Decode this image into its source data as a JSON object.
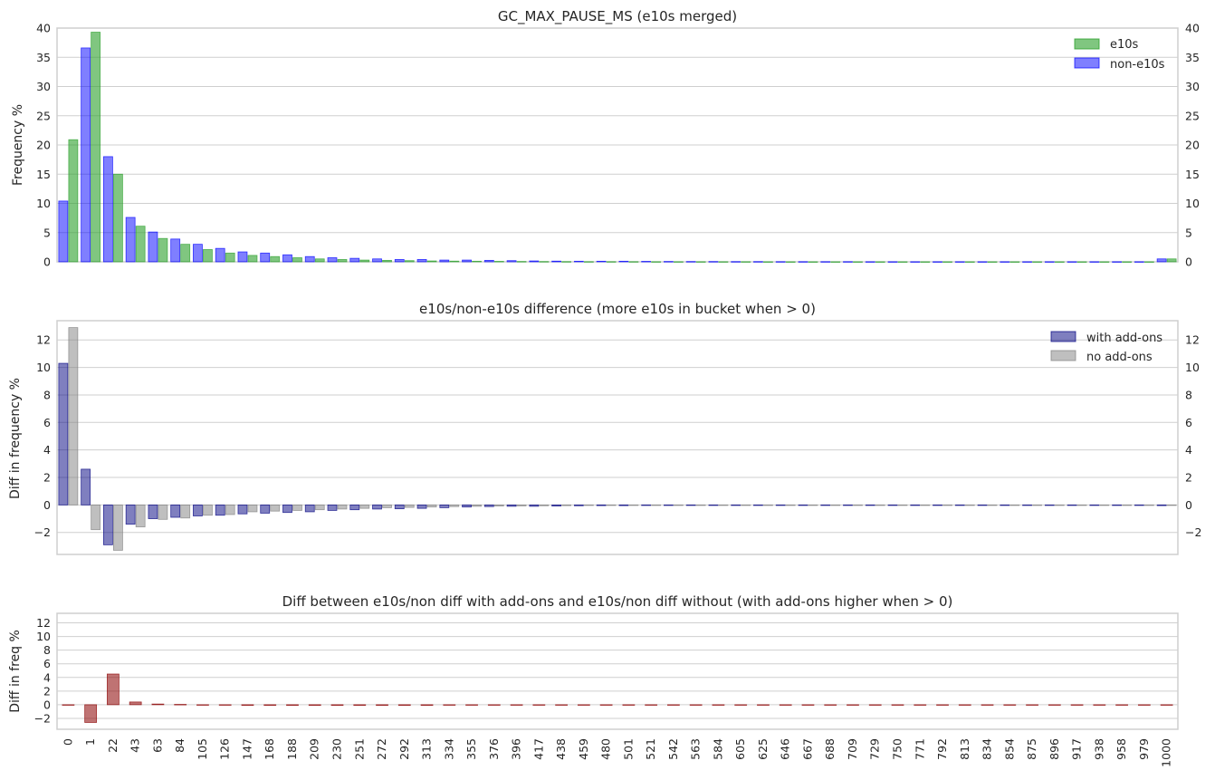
{
  "colors": {
    "e10s": "#2ca02c",
    "non_e10s": "#0000ff",
    "with_addons": "#000080",
    "no_addons": "#808080",
    "diff": "#8b0000"
  },
  "chart_data": [
    {
      "type": "bar",
      "title": "GC_MAX_PAUSE_MS (e10s merged)",
      "xlabel": "",
      "ylabel": "Frequency %",
      "ylim": [
        0,
        40
      ],
      "yticks": [
        "0",
        "5",
        "10",
        "15",
        "20",
        "25",
        "30",
        "35",
        "40"
      ],
      "right_axis_ticks": true,
      "grid": true,
      "legend_position": "top-right",
      "series": [
        {
          "name": "non-e10s",
          "color_key": "non_e10s",
          "values": [
            10.4,
            36.6,
            18.0,
            7.6,
            5.1,
            3.9,
            3.0,
            2.3,
            1.7,
            1.5,
            1.2,
            0.9,
            0.7,
            0.6,
            0.5,
            0.4,
            0.4,
            0.3,
            0.3,
            0.25,
            0.2,
            0.15,
            0.12,
            0.1,
            0.1,
            0.1,
            0.08,
            0.06,
            0.05,
            0.05,
            0.04,
            0.04,
            0.03,
            0.03,
            0.03,
            0.03,
            0.02,
            0.02,
            0.02,
            0.02,
            0.02,
            0.02,
            0.02,
            0.02,
            0.02,
            0.02,
            0.02,
            0.02,
            0.02,
            0.5
          ]
        },
        {
          "name": "e10s",
          "color_key": "e10s",
          "values": [
            20.9,
            39.3,
            15.0,
            6.1,
            4.0,
            3.0,
            2.1,
            1.5,
            1.1,
            0.9,
            0.7,
            0.5,
            0.4,
            0.3,
            0.25,
            0.2,
            0.15,
            0.12,
            0.1,
            0.08,
            0.06,
            0.05,
            0.04,
            0.03,
            0.03,
            0.03,
            0.02,
            0.02,
            0.02,
            0.02,
            0.02,
            0.01,
            0.01,
            0.01,
            0.01,
            0.01,
            0.01,
            0.01,
            0.01,
            0.01,
            0.01,
            0.01,
            0.01,
            0.01,
            0.01,
            0.01,
            0.01,
            0.01,
            0.01,
            0.5
          ]
        }
      ],
      "legend_order": [
        "e10s",
        "non-e10s"
      ]
    },
    {
      "type": "bar",
      "title": "e10s/non-e10s difference (more e10s in bucket when > 0)",
      "xlabel": "",
      "ylabel": "Diff in frequency %",
      "ylim": [
        -3.6,
        13.4
      ],
      "yticks": [
        "−2",
        "0",
        "2",
        "4",
        "6",
        "8",
        "10",
        "12"
      ],
      "right_axis_ticks": true,
      "grid": true,
      "legend_position": "top-right",
      "series": [
        {
          "name": "with add-ons",
          "color_key": "with_addons",
          "values": [
            10.3,
            2.6,
            -2.9,
            -1.4,
            -1.0,
            -0.9,
            -0.8,
            -0.75,
            -0.65,
            -0.6,
            -0.55,
            -0.5,
            -0.4,
            -0.35,
            -0.3,
            -0.28,
            -0.25,
            -0.2,
            -0.15,
            -0.12,
            -0.1,
            -0.1,
            -0.08,
            -0.06,
            -0.05,
            -0.05,
            -0.04,
            -0.04,
            -0.03,
            -0.03,
            -0.03,
            -0.03,
            -0.02,
            -0.02,
            -0.02,
            -0.02,
            -0.02,
            -0.02,
            -0.02,
            -0.02,
            -0.02,
            -0.02,
            -0.02,
            -0.02,
            -0.02,
            -0.02,
            -0.02,
            -0.02,
            -0.02,
            -0.05
          ]
        },
        {
          "name": "no add-ons",
          "color_key": "no_addons",
          "values": [
            12.9,
            -1.8,
            -3.3,
            -1.6,
            -1.05,
            -0.95,
            -0.75,
            -0.7,
            -0.5,
            -0.45,
            -0.4,
            -0.35,
            -0.3,
            -0.25,
            -0.2,
            -0.18,
            -0.15,
            -0.12,
            -0.1,
            -0.08,
            -0.07,
            -0.06,
            -0.05,
            -0.04,
            -0.04,
            -0.03,
            -0.03,
            -0.02,
            -0.02,
            -0.02,
            -0.02,
            -0.02,
            -0.02,
            -0.02,
            -0.02,
            -0.02,
            -0.02,
            -0.02,
            -0.02,
            -0.02,
            -0.02,
            -0.02,
            -0.02,
            -0.02,
            -0.02,
            -0.02,
            -0.02,
            -0.02,
            -0.02,
            -0.02
          ]
        }
      ]
    },
    {
      "type": "bar",
      "title": "Diff between e10s/non diff with add-ons and e10s/non diff without (with add-ons higher when > 0)",
      "xlabel": "",
      "ylabel": "Diff in freq %",
      "ylim": [
        -3.6,
        13.4
      ],
      "yticks": [
        "−2",
        "0",
        "2",
        "4",
        "6",
        "8",
        "10",
        "12"
      ],
      "right_axis_ticks": false,
      "grid": true,
      "categories": [
        "0",
        "1",
        "22",
        "43",
        "63",
        "84",
        "105",
        "126",
        "147",
        "168",
        "188",
        "209",
        "230",
        "251",
        "272",
        "292",
        "313",
        "334",
        "355",
        "376",
        "396",
        "417",
        "438",
        "459",
        "480",
        "501",
        "521",
        "542",
        "563",
        "584",
        "605",
        "625",
        "646",
        "667",
        "688",
        "709",
        "729",
        "750",
        "771",
        "792",
        "813",
        "834",
        "854",
        "875",
        "896",
        "917",
        "938",
        "958",
        "979",
        "1000"
      ],
      "series": [
        {
          "color_key": "diff",
          "values": [
            0.0,
            -2.6,
            4.5,
            0.4,
            0.1,
            0.05,
            -0.05,
            -0.05,
            -0.1,
            -0.1,
            -0.1,
            -0.1,
            -0.1,
            -0.1,
            -0.1,
            -0.1,
            -0.1,
            -0.08,
            -0.05,
            -0.04,
            -0.03,
            -0.03,
            -0.02,
            -0.02,
            -0.01,
            -0.01,
            -0.01,
            -0.01,
            -0.01,
            -0.01,
            -0.01,
            -0.01,
            -0.01,
            -0.01,
            -0.01,
            -0.01,
            -0.01,
            -0.01,
            -0.01,
            -0.01,
            -0.01,
            -0.01,
            -0.01,
            -0.01,
            -0.01,
            -0.01,
            -0.01,
            -0.01,
            -0.01,
            -0.03
          ]
        }
      ]
    }
  ]
}
